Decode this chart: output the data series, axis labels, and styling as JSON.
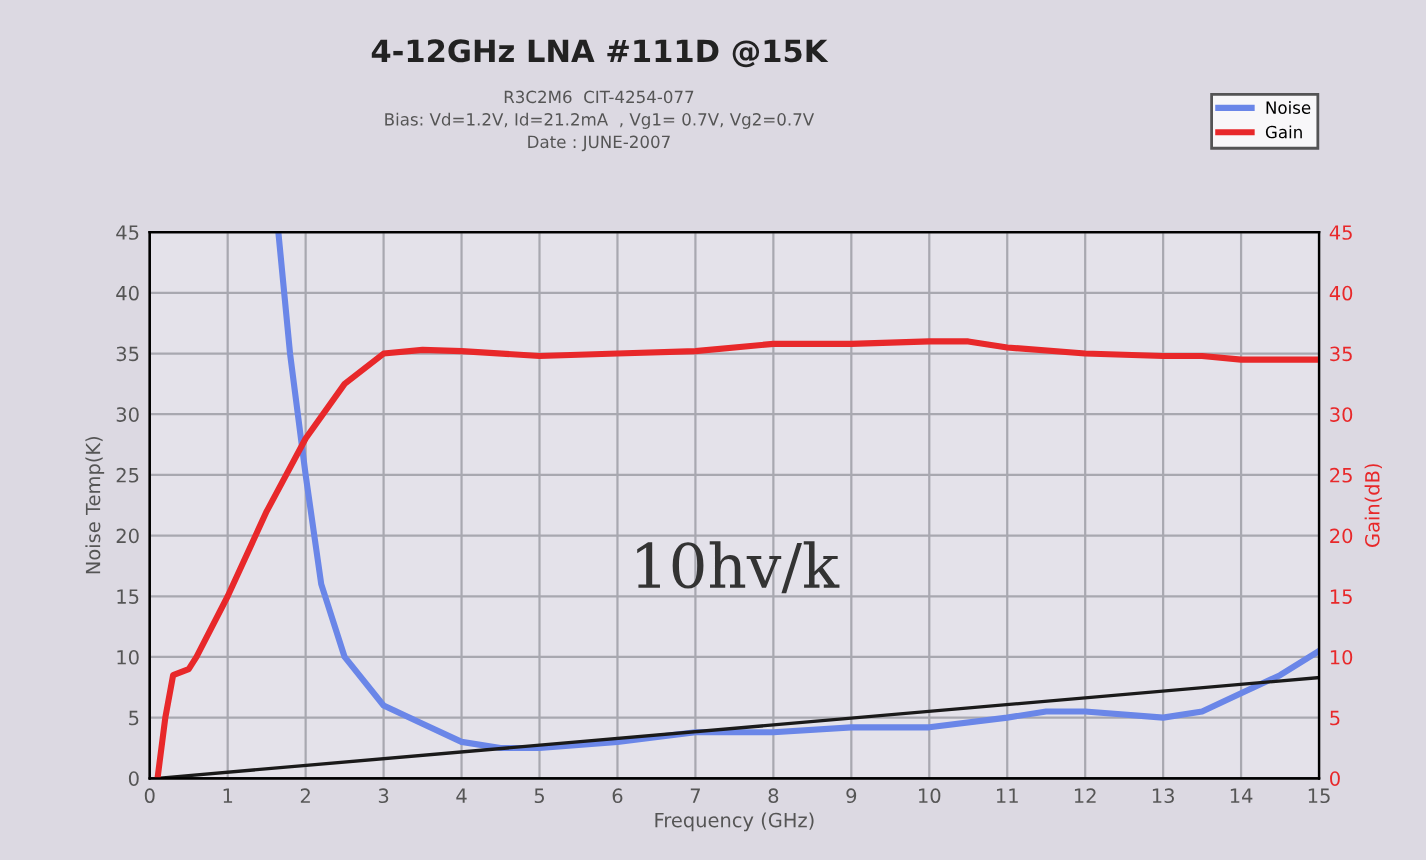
{
  "chart_data": {
    "type": "line",
    "title": "4-12GHz LNA #111D @15K",
    "subtitle": "R3C2M6  CIT-4254-077\nBias: Vd=1.2V, Id=21.2mA  , Vg1= 0.7V, Vg2=0.7V\nDate : JUNE-2007",
    "xlabel": "Frequency (GHz)",
    "ylabel": "Noise Temp(K)",
    "y2label": "Gain(dB)",
    "annotations": [
      "10hv/k"
    ],
    "xlim": [
      0,
      15
    ],
    "xticks": [
      0,
      1,
      2,
      3,
      4,
      5,
      6,
      7,
      8,
      9,
      10,
      11,
      12,
      13,
      14,
      15
    ],
    "ylim": [
      0,
      45
    ],
    "yticks": [
      0,
      5,
      10,
      15,
      20,
      25,
      30,
      35,
      40,
      45
    ],
    "y2lim": [
      0,
      45
    ],
    "y2ticks": [
      0,
      5,
      10,
      15,
      20,
      25,
      30,
      35,
      40,
      45
    ],
    "grid": true,
    "legend": "top right",
    "series": [
      {
        "name": "Noise",
        "color": "#6a86e8",
        "x": [
          1.65,
          1.8,
          2,
          2.2,
          2.5,
          3,
          3.5,
          4,
          4.5,
          5,
          6,
          7,
          8,
          9,
          10,
          11,
          11.5,
          12,
          13,
          13.5,
          14,
          14.5,
          15
        ],
        "values": [
          45,
          35,
          25,
          16,
          10,
          6,
          4.5,
          3,
          2.5,
          2.5,
          3,
          3.8,
          3.8,
          4.2,
          4.2,
          5,
          5.5,
          5.5,
          5,
          5.5,
          7,
          8.5,
          10.5
        ]
      },
      {
        "name": "Gain",
        "color": "#e8282a",
        "axis": "y2",
        "x": [
          0.1,
          0.2,
          0.3,
          0.5,
          0.6,
          1,
          1.5,
          2,
          2.5,
          3,
          3.5,
          4,
          5,
          6,
          7,
          8,
          9,
          10,
          10.5,
          11,
          12,
          13,
          13.5,
          14,
          15
        ],
        "values": [
          0,
          5,
          8.5,
          9,
          10,
          15,
          22,
          28,
          32.5,
          35,
          35.3,
          35.2,
          34.8,
          35,
          35.2,
          35.8,
          35.8,
          36,
          36,
          35.5,
          35,
          34.8,
          34.8,
          34.5,
          34.5
        ]
      },
      {
        "color": "#1a1a1a",
        "x": [
          0.1,
          15
        ],
        "values": [
          0,
          8.3
        ]
      }
    ]
  }
}
